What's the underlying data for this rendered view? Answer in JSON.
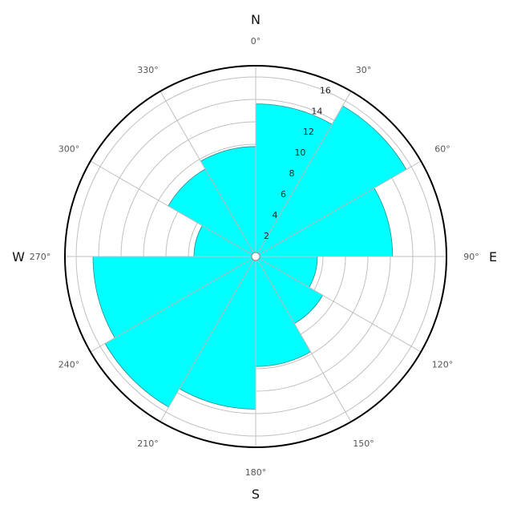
{
  "chart_data": {
    "type": "polar-bar",
    "title": "",
    "direction_labels": {
      "north": "N",
      "east": "E",
      "south": "S",
      "west": "W"
    },
    "angle_tick_labels": [
      "0°",
      "30°",
      "60°",
      "90°",
      "120°",
      "150°",
      "180°",
      "210°",
      "240°",
      "270°",
      "300°",
      "330°"
    ],
    "radial_tick_labels": [
      "2",
      "4",
      "6",
      "8",
      "10",
      "12",
      "14",
      "16"
    ],
    "radial_tick_values": [
      2,
      4,
      6,
      8,
      10,
      12,
      14,
      16
    ],
    "rlim": [
      0,
      17
    ],
    "angle_zero": "north",
    "angle_direction": "clockwise",
    "grid": true,
    "sectors_start_deg": [
      0,
      30,
      60,
      90,
      120,
      150,
      180,
      210,
      240,
      270,
      300,
      330
    ],
    "sector_width_deg": 30,
    "values": [
      13.6,
      15.5,
      12.2,
      5.5,
      6.9,
      9.8,
      13.6,
      15.5,
      14.5,
      5.5,
      9.0,
      9.8
    ],
    "fill_color": "#00ffff",
    "edge_color": "#2e8b8b",
    "grid_color": "#c0c0c0",
    "axis_color": "#000000"
  }
}
